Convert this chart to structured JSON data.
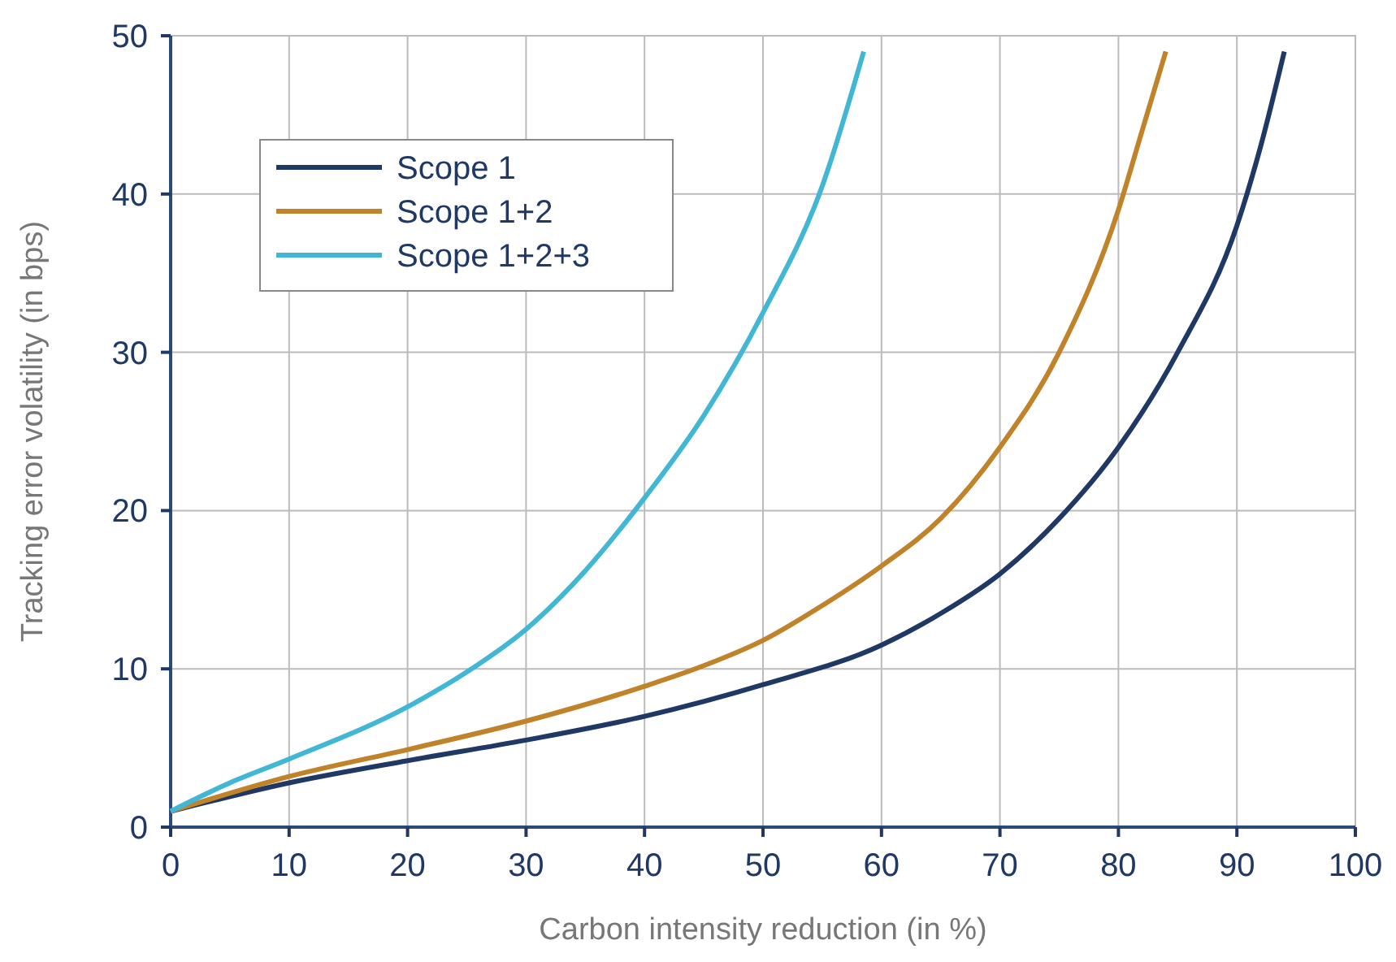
{
  "chart_data": {
    "type": "line",
    "xlabel": "Carbon intensity reduction (in %)",
    "ylabel": "Tracking error volatility (in bps)",
    "xlim": [
      0,
      100
    ],
    "xticks": [
      0,
      10,
      20,
      30,
      40,
      50,
      60,
      70,
      80,
      90,
      100
    ],
    "ylim": [
      0,
      50
    ],
    "yticks": [
      0,
      10,
      20,
      30,
      40,
      50
    ],
    "grid": true,
    "legend": "top left",
    "series": [
      {
        "name": "Scope 1",
        "color": "#1f3864",
        "x": [
          0,
          10,
          20,
          30,
          40,
          50,
          60,
          65,
          70,
          75,
          80,
          85,
          90,
          92,
          94
        ],
        "values": [
          1,
          2.8,
          4.2,
          5.5,
          7,
          9,
          11.5,
          13.5,
          16,
          19.5,
          24,
          30,
          38,
          43,
          49
        ]
      },
      {
        "name": "Scope 1+2",
        "color": "#c0832a",
        "x": [
          0,
          10,
          20,
          30,
          40,
          45,
          50,
          55,
          60,
          65,
          70,
          75,
          80,
          82,
          84
        ],
        "values": [
          1,
          3.2,
          4.9,
          6.7,
          8.9,
          10.2,
          11.8,
          14,
          16.5,
          19.5,
          24,
          30,
          39,
          44,
          49
        ]
      },
      {
        "name": "Scope 1+2+3",
        "color": "#41b6d5",
        "x": [
          0,
          5,
          10,
          20,
          25,
          30,
          35,
          40,
          45,
          50,
          55,
          58.5
        ],
        "values": [
          1,
          2.8,
          4.3,
          7.6,
          9.8,
          12.5,
          16.2,
          20.8,
          26,
          32.5,
          40.5,
          49
        ]
      }
    ]
  }
}
